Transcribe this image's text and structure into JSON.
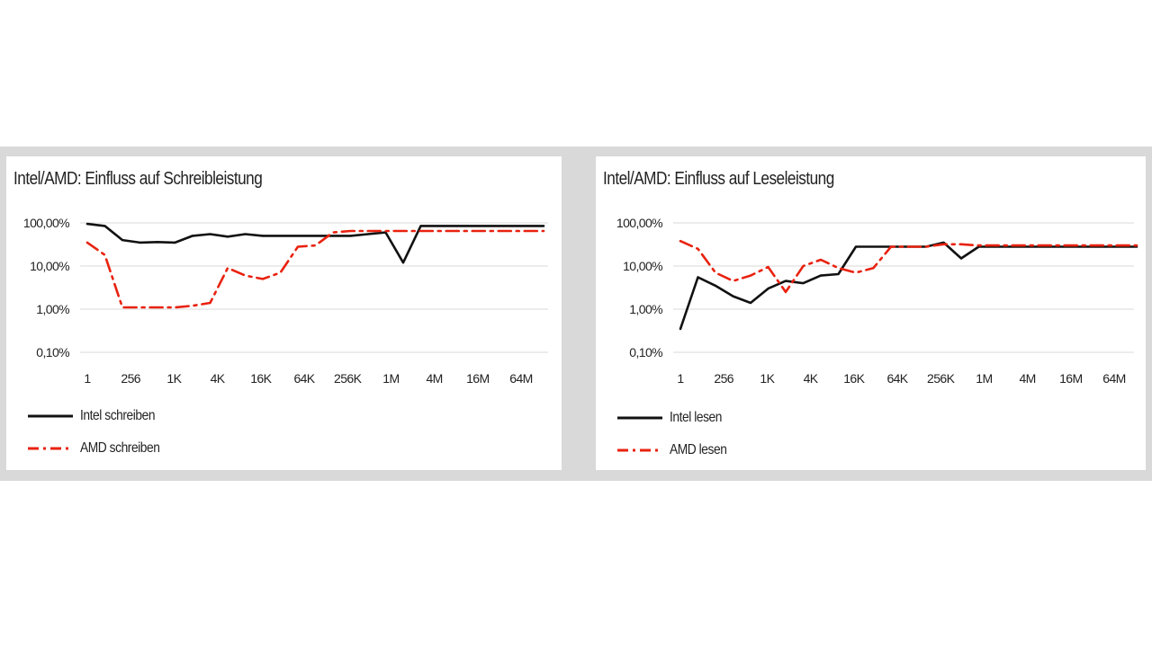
{
  "colors": {
    "intel": "#111111",
    "amd": "#e8220f",
    "grid": "#d9d9d9"
  },
  "chart_data": [
    {
      "type": "line",
      "title": "Intel/AMD: Einfluss auf Schreibleistung",
      "y_scale": "log",
      "ylim": [
        0.001,
        1
      ],
      "yticks": [
        1,
        0.1,
        0.01,
        0.001
      ],
      "ytick_labels": [
        "100,00%",
        "10,00%",
        "1,00%",
        "0,10%"
      ],
      "x_labels": [
        "1",
        "256",
        "1K",
        "4K",
        "16K",
        "64K",
        "256K",
        "1M",
        "4M",
        "16M",
        "64M"
      ],
      "grid": true,
      "legend_position": "bottom-left",
      "series": [
        {
          "name": "Intel schreiben",
          "color_key": "intel",
          "dash": "solid",
          "values": [
            0.95,
            0.85,
            0.4,
            0.35,
            0.36,
            0.35,
            0.5,
            0.55,
            0.48,
            0.55,
            0.5,
            0.5,
            0.5,
            0.5,
            0.5,
            0.5,
            0.55,
            0.6,
            0.12,
            0.85,
            0.85,
            0.85,
            0.85,
            0.85,
            0.85,
            0.85,
            0.85
          ]
        },
        {
          "name": "AMD schreiben",
          "color_key": "amd",
          "dash": "dashdot",
          "values": [
            0.35,
            0.18,
            0.011,
            0.011,
            0.011,
            0.011,
            0.012,
            0.014,
            0.09,
            0.06,
            0.05,
            0.07,
            0.28,
            0.3,
            0.6,
            0.65,
            0.65,
            0.65,
            0.65,
            0.65,
            0.65,
            0.65,
            0.65,
            0.65,
            0.65,
            0.65,
            0.65
          ]
        }
      ]
    },
    {
      "type": "line",
      "title": "Intel/AMD: Einfluss auf Leseleistung",
      "y_scale": "log",
      "ylim": [
        0.001,
        1
      ],
      "yticks": [
        1,
        0.1,
        0.01,
        0.001
      ],
      "ytick_labels": [
        "100,00%",
        "10,00%",
        "1,00%",
        "0,10%"
      ],
      "x_labels": [
        "1",
        "256",
        "1K",
        "4K",
        "16K",
        "64K",
        "256K",
        "1M",
        "4M",
        "16M",
        "64M"
      ],
      "grid": true,
      "legend_position": "bottom-left",
      "series": [
        {
          "name": "Intel lesen",
          "color_key": "intel",
          "dash": "solid",
          "values": [
            0.0035,
            0.055,
            0.035,
            0.02,
            0.014,
            0.03,
            0.045,
            0.04,
            0.06,
            0.065,
            0.28,
            0.28,
            0.28,
            0.28,
            0.28,
            0.35,
            0.15,
            0.28,
            0.28,
            0.28,
            0.28,
            0.28,
            0.28,
            0.28,
            0.28,
            0.28,
            0.28
          ]
        },
        {
          "name": "AMD lesen",
          "color_key": "amd",
          "dash": "dashdot",
          "values": [
            0.38,
            0.25,
            0.07,
            0.045,
            0.06,
            0.095,
            0.025,
            0.1,
            0.14,
            0.09,
            0.07,
            0.09,
            0.28,
            0.28,
            0.28,
            0.32,
            0.32,
            0.3,
            0.3,
            0.3,
            0.3,
            0.3,
            0.3,
            0.3,
            0.3,
            0.3,
            0.3
          ]
        }
      ]
    }
  ]
}
